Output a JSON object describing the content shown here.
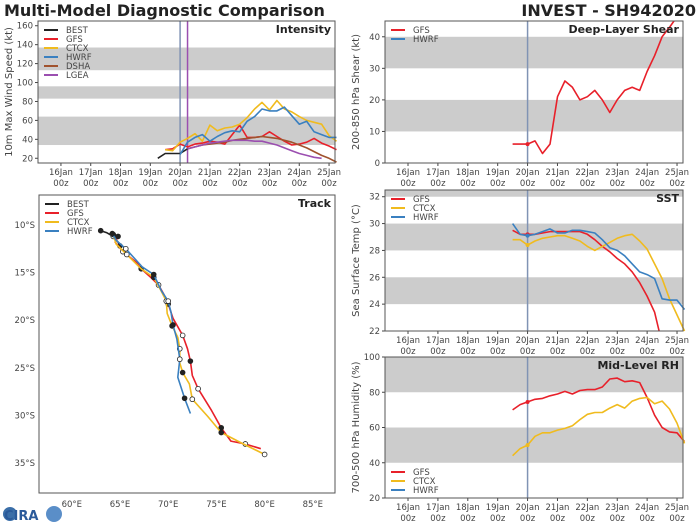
{
  "header": {
    "left_title": "Multi-Model Diagnostic Comparison",
    "right_title": "INVEST - SH942020"
  },
  "logo": {
    "text": "CIRA"
  },
  "colors": {
    "BEST": "#222222",
    "GFS": "#e8202a",
    "CTCX": "#f0bb1e",
    "HWRF": "#3a80c0",
    "DSHA": "#a0522d",
    "LGEA": "#9b4fb0",
    "band": "#cccccc",
    "vline_blue": "#8093b4",
    "vline_purple": "#9b4fb0"
  },
  "time_ticks": {
    "dates": [
      "16Jan",
      "17Jan",
      "18Jan",
      "19Jan",
      "20Jan",
      "21Jan",
      "22Jan",
      "23Jan",
      "24Jan",
      "25Jan"
    ],
    "hour": "00z"
  },
  "chart_data": [
    {
      "id": "intensity",
      "type": "line",
      "title": "Intensity",
      "ylabel": "10m Max Wind Speed (kt)",
      "x_units": "days after 16Jan 00z",
      "ylim": [
        15,
        165
      ],
      "yticks": [
        20,
        40,
        60,
        80,
        100,
        120,
        140,
        160
      ],
      "bands": [
        [
          34,
          64
        ],
        [
          83,
          96
        ],
        [
          113,
          137
        ]
      ],
      "vlines": [
        {
          "x": 4.0,
          "color": "vline_blue"
        },
        {
          "x": 4.25,
          "color": "vline_purple"
        }
      ],
      "legend": "top-left",
      "series": [
        {
          "name": "BEST",
          "x": [
            3.25,
            3.5,
            3.75,
            4.0,
            4.25
          ],
          "y": [
            20,
            25,
            25,
            25,
            30
          ]
        },
        {
          "name": "GFS",
          "x": [
            3.5,
            3.75,
            4.0,
            4.25,
            4.5,
            4.75,
            5.0,
            5.25,
            5.5,
            5.75,
            6.0,
            6.25,
            6.5,
            6.75,
            7.0,
            7.25,
            7.5,
            7.75,
            8.0,
            8.25,
            8.5,
            8.75,
            9.0,
            9.25
          ],
          "y": [
            29,
            30,
            35,
            32,
            35,
            36,
            38,
            37,
            35,
            45,
            55,
            42,
            42,
            43,
            48,
            43,
            38,
            34,
            35,
            37,
            41,
            36,
            33,
            29
          ]
        },
        {
          "name": "CTCX",
          "x": [
            3.5,
            3.75,
            4.0,
            4.25,
            4.5,
            4.75,
            5.0,
            5.25,
            5.5,
            5.75,
            6.0,
            6.25,
            6.5,
            6.75,
            7.0,
            7.25,
            7.5,
            7.75,
            8.0,
            8.25,
            8.5,
            8.75,
            9.0,
            9.25
          ],
          "y": [
            29,
            28,
            37,
            41,
            46,
            38,
            55,
            49,
            52,
            53,
            56,
            63,
            72,
            79,
            71,
            81,
            72,
            69,
            64,
            60,
            58,
            56,
            44,
            38
          ]
        },
        {
          "name": "HWRF",
          "x": [
            4.0,
            4.25,
            4.5,
            4.75,
            5.0,
            5.25,
            5.5,
            5.75,
            6.0,
            6.25,
            6.5,
            6.75,
            7.0,
            7.25,
            7.5,
            7.75,
            8.0,
            8.25,
            8.5,
            8.75,
            9.0,
            9.25
          ],
          "y": [
            24,
            37,
            42,
            45,
            38,
            43,
            47,
            49,
            48,
            59,
            64,
            72,
            70,
            70,
            74,
            65,
            56,
            59,
            48,
            45,
            42,
            42
          ]
        },
        {
          "name": "DSHA",
          "x": [
            4.25,
            4.5,
            4.75,
            5.0,
            5.25,
            5.5,
            5.75,
            6.0,
            6.25,
            6.5,
            6.75,
            7.0,
            7.25,
            7.5,
            7.75,
            8.0,
            8.25,
            8.5,
            8.75,
            9.0,
            9.25
          ],
          "y": [
            30,
            32,
            34,
            35,
            36,
            37,
            39,
            40,
            41,
            42,
            43,
            42,
            41,
            39,
            37,
            34,
            31,
            27,
            23,
            20,
            16
          ]
        },
        {
          "name": "LGEA",
          "x": [
            4.25,
            4.5,
            4.75,
            5.0,
            5.25,
            5.5,
            5.75,
            6.0,
            6.25,
            6.5,
            6.75,
            7.0,
            7.25,
            7.5,
            7.75,
            8.0,
            8.25,
            8.5,
            8.75
          ],
          "y": [
            30,
            32,
            34,
            36,
            37,
            38,
            39,
            39,
            39,
            38,
            38,
            36,
            34,
            31,
            28,
            25,
            23,
            21,
            20
          ]
        }
      ]
    },
    {
      "id": "shear",
      "type": "line",
      "title": "Deep-Layer Shear",
      "ylabel": "200-850 hPa Shear (kt)",
      "x_units": "days after 16Jan 00z",
      "ylim": [
        0,
        45
      ],
      "yticks": [
        0,
        10,
        20,
        30,
        40
      ],
      "bands": [
        [
          10,
          20
        ],
        [
          30,
          40
        ]
      ],
      "vlines": [
        {
          "x": 4.0,
          "color": "vline_blue"
        }
      ],
      "legend": "top-left",
      "legend_names": [
        "GFS",
        "HWRF"
      ],
      "series": [
        {
          "name": "GFS",
          "x": [
            3.5,
            3.75,
            4.0,
            4.25,
            4.5,
            4.75,
            5.0,
            5.25,
            5.5,
            5.75,
            6.0,
            6.25,
            6.5,
            6.75,
            7.0,
            7.25,
            7.5,
            7.75,
            8.0,
            8.25,
            8.5,
            8.75,
            8.9
          ],
          "y": [
            6,
            6,
            6,
            7,
            3,
            6,
            21,
            26,
            24,
            20,
            21,
            23,
            20,
            16,
            20,
            23,
            24,
            23,
            29,
            34,
            40,
            43,
            45
          ]
        }
      ]
    },
    {
      "id": "sst",
      "type": "line",
      "title": "SST",
      "ylabel": "Sea Surface Temp (°C)",
      "x_units": "days after 16Jan 00z",
      "ylim": [
        22,
        32.5
      ],
      "yticks": [
        22,
        24,
        26,
        28,
        30,
        32
      ],
      "bands": [
        [
          24,
          26
        ],
        [
          28,
          30
        ],
        [
          32,
          32.5
        ]
      ],
      "vlines": [
        {
          "x": 4.0,
          "color": "vline_blue"
        }
      ],
      "legend": "top-left",
      "series": [
        {
          "name": "GFS",
          "x": [
            3.5,
            3.75,
            4.0,
            4.25,
            4.5,
            4.75,
            5.0,
            5.25,
            5.5,
            5.75,
            6.0,
            6.25,
            6.5,
            6.75,
            7.0,
            7.25,
            7.5,
            7.75,
            8.0,
            8.25,
            8.4
          ],
          "y": [
            29.5,
            29.2,
            29.2,
            29.2,
            29.3,
            29.4,
            29.4,
            29.4,
            29.4,
            29.4,
            29.2,
            28.8,
            28.3,
            27.9,
            27.4,
            27.0,
            26.4,
            25.6,
            24.6,
            23.4,
            22.0
          ]
        },
        {
          "name": "CTCX",
          "x": [
            3.5,
            3.75,
            4.0,
            4.25,
            4.5,
            4.75,
            5.0,
            5.25,
            5.5,
            5.75,
            6.0,
            6.25,
            6.5,
            6.75,
            7.0,
            7.25,
            7.5,
            7.75,
            8.0,
            8.25,
            8.5,
            8.75,
            9.0,
            9.25
          ],
          "y": [
            28.8,
            28.8,
            28.4,
            28.7,
            28.9,
            29.0,
            29.1,
            29.1,
            28.9,
            28.7,
            28.3,
            28.0,
            28.3,
            28.6,
            28.9,
            29.1,
            29.2,
            28.7,
            28.1,
            27.0,
            25.9,
            24.4,
            23.2,
            22.0
          ]
        },
        {
          "name": "HWRF",
          "x": [
            3.5,
            3.75,
            4.0,
            4.25,
            4.5,
            4.75,
            5.0,
            5.25,
            5.5,
            5.75,
            6.0,
            6.25,
            6.5,
            6.75,
            7.0,
            7.25,
            7.5,
            7.75,
            8.0,
            8.25,
            8.5,
            8.75,
            9.0,
            9.25
          ],
          "y": [
            30.0,
            29.2,
            29.1,
            29.2,
            29.4,
            29.6,
            29.3,
            29.3,
            29.5,
            29.5,
            29.4,
            29.3,
            28.8,
            28.2,
            28.0,
            27.6,
            27.0,
            26.4,
            26.2,
            25.9,
            24.4,
            24.3,
            24.3,
            23.6
          ]
        }
      ]
    },
    {
      "id": "rh",
      "type": "line",
      "title": "Mid-Level RH",
      "ylabel": "700-500 hPa Humidity (%)",
      "x_units": "days after 16Jan 00z",
      "ylim": [
        20,
        100
      ],
      "yticks": [
        20,
        40,
        60,
        80,
        100
      ],
      "bands": [
        [
          40,
          60
        ],
        [
          80,
          100
        ]
      ],
      "vlines": [
        {
          "x": 4.0,
          "color": "vline_blue"
        }
      ],
      "legend": "bottom-left",
      "legend_names": [
        "GFS",
        "CTCX",
        "HWRF"
      ],
      "series": [
        {
          "name": "GFS",
          "x": [
            3.5,
            3.75,
            4.0,
            4.25,
            4.5,
            4.75,
            5.0,
            5.25,
            5.5,
            5.75,
            6.0,
            6.25,
            6.5,
            6.75,
            7.0,
            7.25,
            7.5,
            7.75,
            8.0,
            8.25,
            8.5,
            8.75,
            9.0,
            9.25
          ],
          "y": [
            70,
            73,
            74.5,
            76,
            76.5,
            78,
            79,
            80.5,
            79,
            81,
            81.5,
            81.5,
            83,
            87.5,
            88,
            86,
            86.5,
            85.5,
            77,
            67,
            60,
            57.5,
            57,
            52
          ]
        },
        {
          "name": "CTCX",
          "x": [
            3.5,
            3.75,
            4.0,
            4.25,
            4.5,
            4.75,
            5.0,
            5.25,
            5.5,
            5.75,
            6.0,
            6.25,
            6.5,
            6.75,
            7.0,
            7.25,
            7.5,
            7.75,
            8.0,
            8.25,
            8.5,
            8.75,
            9.0,
            9.25
          ],
          "y": [
            44,
            48,
            50,
            55,
            57,
            57,
            58.5,
            59.5,
            61,
            64.5,
            67.5,
            68.5,
            68.5,
            71,
            73,
            71,
            75,
            76.5,
            77,
            73.5,
            75,
            70.5,
            62.5,
            51
          ]
        }
      ]
    },
    {
      "id": "track",
      "type": "line",
      "title": "Track",
      "xlim": [
        56.6,
        87.3
      ],
      "ylim": [
        6.85,
        38.15
      ],
      "xticks": [
        60,
        65,
        70,
        75,
        80,
        85
      ],
      "xticklabels": [
        "60°E",
        "65°E",
        "70°E",
        "75°E",
        "80°E",
        "85°E"
      ],
      "yticks": [
        10,
        15,
        20,
        25,
        30,
        35
      ],
      "yticklabels": [
        "10°S",
        "15°S",
        "20°S",
        "25°S",
        "30°S",
        "35°S"
      ],
      "legend": "top-left",
      "series": [
        {
          "name": "BEST",
          "x": [
            63.0,
            63.6,
            64.3,
            64.8,
            65.0
          ],
          "y": [
            10.6,
            10.8,
            11.2,
            11.8,
            12.2
          ]
        },
        {
          "name": "GFS",
          "x": [
            64.8,
            64.5,
            65.3,
            66.8,
            67.2,
            68.2,
            69.0,
            69.5,
            70.0,
            70.5,
            71.5,
            72.0,
            72.3,
            72.5,
            73.1,
            74.5,
            75.5,
            76.5,
            78.0,
            79.6
          ],
          "y": [
            11.2,
            11.8,
            12.8,
            14.0,
            14.6,
            15.5,
            16.3,
            17.2,
            18.3,
            19.8,
            21.6,
            23.0,
            24.3,
            25.8,
            27.2,
            29.5,
            31.3,
            32.7,
            33.0,
            33.5
          ]
        },
        {
          "name": "CTCX",
          "x": [
            64.3,
            64.6,
            65.7,
            67.2,
            68.5,
            69.2,
            69.8,
            69.9,
            70.4,
            71.0,
            71.2,
            71.2,
            71.5,
            72.2,
            72.5,
            74.1,
            75.5,
            77.8,
            80.0
          ],
          "y": [
            11.0,
            12.0,
            13.1,
            14.6,
            15.5,
            16.8,
            18.0,
            19.3,
            20.6,
            21.8,
            23.0,
            24.5,
            25.5,
            26.7,
            28.3,
            30.1,
            31.8,
            33.0,
            34.1
          ]
        },
        {
          "name": "HWRF",
          "x": [
            64.2,
            64.6,
            65.6,
            67.3,
            68.5,
            69.3,
            70.0,
            70.3,
            70.5,
            70.9,
            71.2,
            71.0,
            71.7,
            72.3
          ],
          "y": [
            10.9,
            11.6,
            12.5,
            14.4,
            15.2,
            16.9,
            18.0,
            19.2,
            20.5,
            22.0,
            24.1,
            26.0,
            28.2,
            29.8
          ]
        }
      ]
    }
  ]
}
